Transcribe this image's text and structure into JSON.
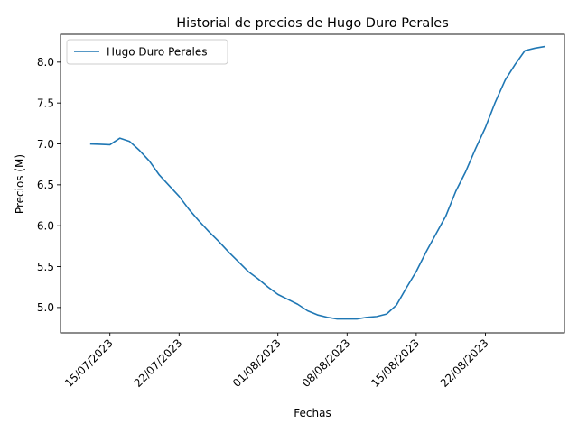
{
  "chart_data": {
    "type": "line",
    "title": "Historial de precios de Hugo Duro Perales",
    "xlabel": "Fechas",
    "ylabel": "Precios (M)",
    "xlim": [
      "2023-07-10",
      "2023-08-30"
    ],
    "ylim": [
      4.69,
      8.34
    ],
    "yticks": [
      5.0,
      5.5,
      6.0,
      6.5,
      7.0,
      7.5,
      8.0
    ],
    "ytick_labels": [
      "5.0",
      "5.5",
      "6.0",
      "6.5",
      "7.0",
      "7.5",
      "8.0"
    ],
    "xticks": [
      "2023-07-15",
      "2023-07-22",
      "2023-08-01",
      "2023-08-08",
      "2023-08-15",
      "2023-08-22"
    ],
    "xtick_labels": [
      "15/07/2023",
      "22/07/2023",
      "01/08/2023",
      "08/08/2023",
      "15/08/2023",
      "22/08/2023"
    ],
    "grid": false,
    "legend_position": "top-left",
    "series": [
      {
        "name": "Hugo Duro Perales",
        "color": "#1f77b4",
        "x": [
          "2023-07-13",
          "2023-07-14",
          "2023-07-15",
          "2023-07-16",
          "2023-07-17",
          "2023-07-18",
          "2023-07-19",
          "2023-07-20",
          "2023-07-21",
          "2023-07-22",
          "2023-07-23",
          "2023-07-24",
          "2023-07-25",
          "2023-07-26",
          "2023-07-27",
          "2023-07-28",
          "2023-07-29",
          "2023-07-30",
          "2023-07-31",
          "2023-08-01",
          "2023-08-02",
          "2023-08-03",
          "2023-08-04",
          "2023-08-05",
          "2023-08-06",
          "2023-08-07",
          "2023-08-08",
          "2023-08-09",
          "2023-08-10",
          "2023-08-11",
          "2023-08-12",
          "2023-08-13",
          "2023-08-14",
          "2023-08-15",
          "2023-08-16",
          "2023-08-17",
          "2023-08-18",
          "2023-08-19",
          "2023-08-20",
          "2023-08-21",
          "2023-08-22",
          "2023-08-23",
          "2023-08-24",
          "2023-08-25",
          "2023-08-26",
          "2023-08-27",
          "2023-08-28"
        ],
        "values": [
          7.0,
          6.995,
          6.99,
          7.07,
          7.03,
          6.92,
          6.79,
          6.62,
          6.49,
          6.36,
          6.2,
          6.06,
          5.93,
          5.81,
          5.68,
          5.56,
          5.44,
          5.35,
          5.25,
          5.16,
          5.1,
          5.04,
          4.96,
          4.91,
          4.88,
          4.86,
          4.86,
          4.86,
          4.88,
          4.89,
          4.92,
          5.03,
          5.24,
          5.44,
          5.68,
          5.9,
          6.12,
          6.42,
          6.66,
          6.94,
          7.2,
          7.51,
          7.78,
          7.97,
          8.14,
          8.17,
          8.19
        ]
      }
    ]
  }
}
